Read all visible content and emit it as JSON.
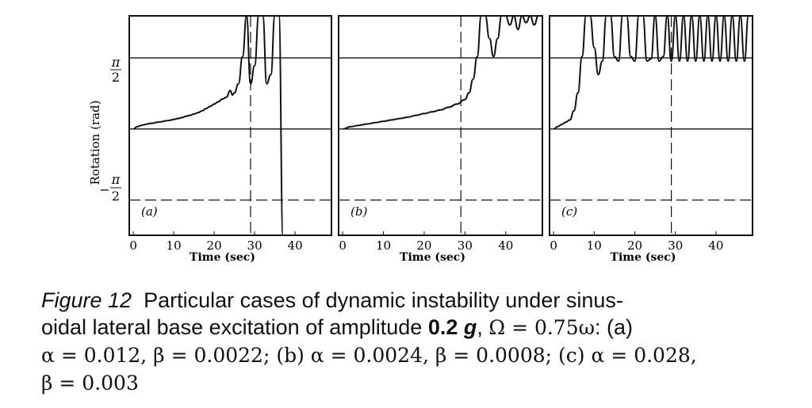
{
  "figure": {
    "ylabel": "Rotation (rad)",
    "y_ticks": [
      {
        "value": 1.5708,
        "label": "π/2"
      },
      {
        "value": -1.5708,
        "label": "− π/2"
      }
    ],
    "xlabel": "Time (sec)"
  },
  "chart_data": [
    {
      "type": "line",
      "panel_label": "(a)",
      "xlabel": "Time (sec)",
      "ylabel": "Rotation (rad)",
      "xlim": [
        -1,
        49
      ],
      "ylim": [
        -2.35,
        2.5
      ],
      "x_ticks": [
        0,
        10,
        20,
        30,
        40
      ],
      "reference_lines": [
        {
          "orientation": "vertical",
          "x": 29,
          "style": "dashed"
        }
      ],
      "series": [
        {
          "x": [
            0,
            1,
            2,
            3,
            4,
            5,
            6,
            7,
            8,
            9,
            10,
            11,
            12,
            13,
            14,
            15,
            16,
            17,
            18,
            19,
            20,
            21,
            22,
            23,
            24,
            24.5,
            25,
            26,
            27,
            28,
            29,
            30,
            31,
            32,
            33,
            34,
            35,
            36,
            37,
            38
          ],
          "y": [
            0.0,
            0.05,
            0.08,
            0.1,
            0.12,
            0.13,
            0.15,
            0.16,
            0.18,
            0.19,
            0.21,
            0.23,
            0.25,
            0.28,
            0.3,
            0.33,
            0.36,
            0.4,
            0.45,
            0.5,
            0.55,
            0.6,
            0.66,
            0.7,
            0.85,
            0.75,
            0.8,
            1.0,
            1.6,
            2.5,
            1.0,
            1.4,
            2.5,
            2.5,
            1.0,
            1.2,
            2.5,
            2.5,
            -2.35,
            -2.35
          ]
        }
      ]
    },
    {
      "type": "line",
      "panel_label": "(b)",
      "xlabel": "Time (sec)",
      "ylabel": "",
      "xlim": [
        -1,
        49
      ],
      "ylim": [
        -2.35,
        2.5
      ],
      "x_ticks": [
        0,
        10,
        20,
        30,
        40
      ],
      "reference_lines": [
        {
          "orientation": "vertical",
          "x": 29,
          "style": "dashed"
        }
      ],
      "series": [
        {
          "x": [
            0,
            2,
            4,
            6,
            8,
            10,
            12,
            14,
            16,
            18,
            20,
            22,
            24,
            26,
            28,
            30,
            31,
            32,
            33,
            34,
            35,
            36,
            37,
            38,
            39,
            40,
            41,
            42,
            43,
            44,
            45,
            46,
            47,
            48
          ],
          "y": [
            0.0,
            0.05,
            0.08,
            0.11,
            0.14,
            0.17,
            0.2,
            0.23,
            0.26,
            0.3,
            0.34,
            0.38,
            0.42,
            0.48,
            0.55,
            0.65,
            0.8,
            1.1,
            1.6,
            2.5,
            2.5,
            2.0,
            1.6,
            2.0,
            2.5,
            2.5,
            2.3,
            2.5,
            2.2,
            2.5,
            2.35,
            2.5,
            2.3,
            2.5
          ]
        }
      ]
    },
    {
      "type": "line",
      "panel_label": "(c)",
      "xlabel": "Time (sec)",
      "ylabel": "",
      "xlim": [
        -1,
        49
      ],
      "ylim": [
        -2.35,
        2.5
      ],
      "x_ticks": [
        0,
        10,
        20,
        30,
        40
      ],
      "reference_lines": [
        {
          "orientation": "vertical",
          "x": 29,
          "style": "dashed"
        }
      ],
      "series": [
        {
          "x": [
            0,
            1,
            2,
            3,
            4,
            5,
            6,
            7,
            8,
            9,
            10,
            11,
            12,
            13,
            14,
            15,
            16,
            17,
            18,
            19,
            20,
            21,
            22,
            23,
            24,
            25,
            26,
            27,
            28,
            29,
            30,
            31,
            32,
            33,
            34,
            35,
            36,
            37,
            38,
            39,
            40,
            41,
            42,
            43,
            44,
            45,
            46,
            47,
            48
          ],
          "y": [
            0.0,
            0.05,
            0.1,
            0.15,
            0.2,
            0.4,
            0.8,
            1.6,
            2.5,
            2.5,
            1.8,
            1.2,
            1.5,
            2.5,
            2.5,
            1.6,
            1.5,
            2.5,
            2.5,
            1.6,
            1.5,
            2.5,
            2.5,
            1.5,
            1.55,
            2.5,
            1.5,
            1.6,
            2.5,
            1.5,
            2.5,
            1.5,
            2.5,
            1.5,
            2.5,
            1.5,
            2.5,
            1.5,
            2.5,
            1.5,
            2.5,
            1.5,
            2.5,
            1.5,
            2.5,
            1.5,
            2.5,
            1.5,
            2.5
          ]
        }
      ]
    }
  ],
  "caption": {
    "figure_label": "Figure 12",
    "text_1": "Particular cases of dynamic instability under sinus-",
    "text_2": "oidal lateral base excitation of amplitude",
    "amp": "0.2",
    "g": "g",
    "omega_eq": "Ω = 0.75ω",
    "text_3": ": (a)",
    "line3": "α = 0.012,  β = 0.0022;  (b)  α = 0.0024,  β = 0.0008;  (c)  α = 0.028,",
    "line4": "β = 0.003"
  }
}
